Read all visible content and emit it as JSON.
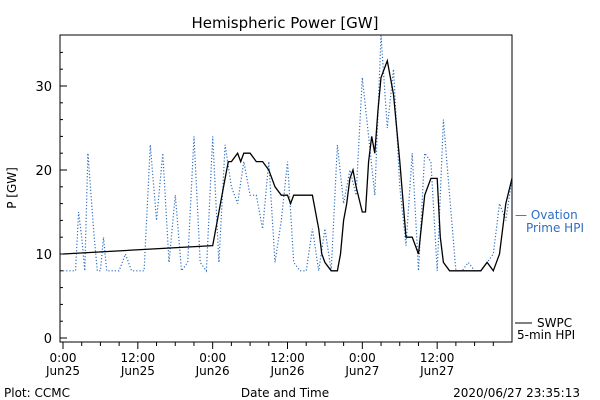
{
  "chart_data": {
    "type": "line",
    "title": "Hemispheric Power [GW]",
    "xlabel": "Date and Time",
    "ylabel": "P [GW]",
    "ylim": [
      0,
      36
    ],
    "xlim_hours": [
      0,
      72
    ],
    "y_ticks": [
      0,
      10,
      20,
      30
    ],
    "x_ticks": [
      {
        "hour": 0,
        "time": "0:00",
        "date": "Jun25"
      },
      {
        "hour": 12,
        "time": "12:00",
        "date": "Jun25"
      },
      {
        "hour": 24,
        "time": "0:00",
        "date": "Jun26"
      },
      {
        "hour": 36,
        "time": "12:00",
        "date": "Jun26"
      },
      {
        "hour": 48,
        "time": "0:00",
        "date": "Jun27"
      },
      {
        "hour": 60,
        "time": "12:00",
        "date": "Jun27"
      }
    ],
    "grid": false,
    "legend_position": "right",
    "series": [
      {
        "name": "SWPC 5-min HPI",
        "color": "#000000",
        "style": "solid",
        "x": [
          0,
          24,
          25,
          26,
          26.5,
          27,
          28,
          28.5,
          29,
          30,
          31,
          32,
          33,
          34,
          35,
          36,
          36.5,
          37,
          38,
          39,
          40,
          41,
          41.5,
          42,
          43,
          44,
          44.5,
          45,
          45.5,
          46,
          46.5,
          47,
          48,
          48.5,
          49,
          49.5,
          50,
          50.5,
          51,
          52,
          53,
          54,
          55,
          56,
          57,
          58,
          59,
          60,
          60.5,
          61,
          62,
          63,
          64,
          65,
          66,
          67,
          68,
          69,
          70,
          71,
          72
        ],
        "values": [
          10,
          11,
          15,
          19,
          21,
          21,
          22,
          21,
          22,
          22,
          21,
          21,
          20,
          18,
          17,
          17,
          16,
          17,
          17,
          17,
          17,
          13,
          10,
          9,
          8,
          8,
          10,
          14,
          16,
          19,
          20,
          18,
          15,
          15,
          21,
          24,
          22,
          27,
          31,
          33,
          29,
          21,
          12,
          12,
          10,
          17,
          19,
          19,
          12,
          9,
          8,
          8,
          8,
          8,
          8,
          8,
          9,
          8,
          10,
          16,
          19
        ]
      },
      {
        "name": "Ovation Prime HPI",
        "color": "#2f6fc0",
        "style": "dotted",
        "x": [
          0,
          2,
          2.5,
          3,
          3.5,
          4,
          5,
          5.5,
          6,
          6.5,
          7,
          8,
          9,
          10,
          11,
          12,
          13,
          14,
          15,
          16,
          17,
          18,
          19,
          20,
          21,
          22,
          23,
          24,
          25,
          26,
          27,
          28,
          29,
          30,
          31,
          32,
          33,
          34,
          35,
          36,
          37,
          38,
          39,
          40,
          41,
          42,
          43,
          44,
          45,
          46,
          47,
          48,
          49,
          50,
          51,
          52,
          53,
          54,
          55,
          56,
          57,
          58,
          59,
          60,
          61,
          62,
          63,
          64,
          65,
          66,
          67,
          68,
          69,
          70,
          71,
          72
        ],
        "values": [
          8,
          8,
          15,
          12,
          8,
          22,
          12,
          8,
          8,
          12,
          8,
          8,
          8,
          10,
          8,
          8,
          8,
          23,
          14,
          22,
          9,
          17,
          8,
          9,
          24,
          9,
          8,
          24,
          9,
          23,
          18,
          16,
          21,
          17,
          17,
          13,
          21,
          9,
          14,
          21,
          9,
          8,
          8,
          13,
          8,
          13,
          8,
          23,
          16,
          20,
          17,
          31,
          24,
          17,
          36,
          25,
          32,
          18,
          11,
          22,
          8,
          22,
          21,
          8,
          26,
          17,
          8,
          8,
          9,
          8,
          8,
          9,
          10,
          16,
          14,
          19
        ]
      }
    ]
  },
  "legend": {
    "ovation_line1": "— Ovation",
    "ovation_line2": "Prime HPI",
    "swpc_line1": "SWPC",
    "swpc_line2": "5-min HPI"
  },
  "footer": {
    "left": "Plot: CCMC",
    "center": "Date and Time",
    "right": "2020/06/27 23:35:13"
  }
}
